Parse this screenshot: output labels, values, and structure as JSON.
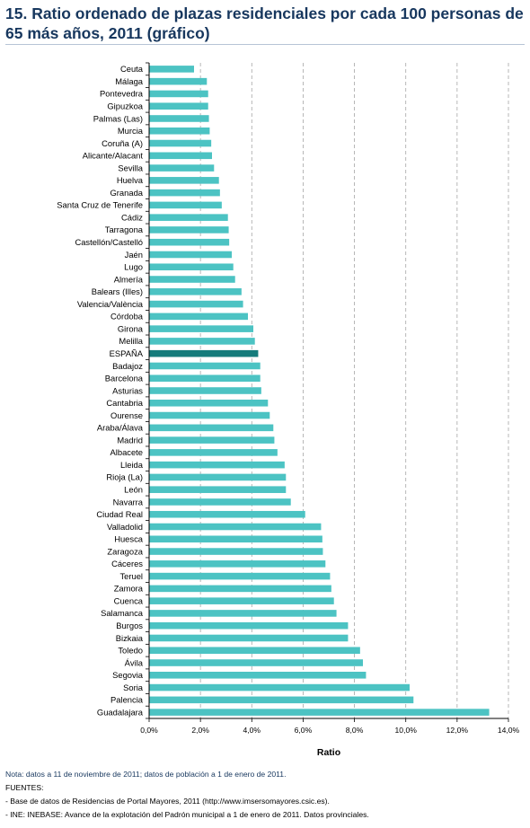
{
  "header": {
    "title": "15. Ratio ordenado de plazas residenciales por cada 100 personas de 65 más años, 2011 (gráfico)"
  },
  "footer": {
    "nota": "Nota: datos a 11 de noviembre de 2011; datos de población a 1 de enero de 2011.",
    "fuentes": "FUENTES:",
    "fuente_1": "- Base de datos de Residencias de Portal Mayores, 2011 (http://www.imsersomayores.csic.es).",
    "fuente_2": "- INE: INEBASE: Avance de la explotación del Padrón municipal a 1 de enero de 2011. Datos provinciales."
  },
  "colors": {
    "bar": "#4cc3c3",
    "highlight": "#157b7b",
    "grid": "#a6a6a6",
    "title": "#17375e"
  },
  "chart_data": {
    "type": "bar",
    "orientation": "horizontal",
    "title": "",
    "xlabel": "Ratio",
    "ylabel": "",
    "xlim": [
      0,
      14
    ],
    "ticks": [
      "0,0%",
      "2,0%",
      "4,0%",
      "6,0%",
      "8,0%",
      "10,0%",
      "12,0%",
      "14,0%"
    ],
    "grid": "vertical dashed",
    "legend": "none",
    "highlight_category": "ESPAÑA",
    "categories": [
      "Ceuta",
      "Málaga",
      "Pontevedra",
      "Gipuzkoa",
      "Palmas (Las)",
      "Murcia",
      "Coruña (A)",
      "Alicante/Alacant",
      "Sevilla",
      "Huelva",
      "Granada",
      "Santa Cruz de Tenerife",
      "Cádiz",
      "Tarragona",
      "Castellón/Castelló",
      "Jaén",
      "Lugo",
      "Almería",
      "Balears (Illes)",
      "Valencia/València",
      "Córdoba",
      "Girona",
      "Melilla",
      "ESPAÑA",
      "Badajoz",
      "Barcelona",
      "Asturias",
      "Cantabria",
      "Ourense",
      "Araba/Álava",
      "Madrid",
      "Albacete",
      "Lleida",
      "Rioja (La)",
      "León",
      "Navarra",
      "Ciudad Real",
      "Valladolid",
      "Huesca",
      "Zaragoza",
      "Cáceres",
      "Teruel",
      "Zamora",
      "Cuenca",
      "Salamanca",
      "Burgos",
      "Bizkaia",
      "Toledo",
      "Ávila",
      "Segovia",
      "Soria",
      "Palencia",
      "Guadalajara"
    ],
    "values": [
      1.75,
      2.25,
      2.3,
      2.3,
      2.33,
      2.36,
      2.42,
      2.45,
      2.53,
      2.72,
      2.76,
      2.83,
      3.07,
      3.1,
      3.12,
      3.22,
      3.28,
      3.35,
      3.6,
      3.66,
      3.85,
      4.06,
      4.12,
      4.25,
      4.33,
      4.33,
      4.37,
      4.63,
      4.7,
      4.84,
      4.88,
      5.0,
      5.28,
      5.33,
      5.33,
      5.52,
      6.08,
      6.7,
      6.75,
      6.77,
      6.87,
      7.05,
      7.1,
      7.2,
      7.3,
      7.75,
      7.75,
      8.22,
      8.33,
      8.45,
      10.15,
      10.3,
      13.25
    ]
  }
}
